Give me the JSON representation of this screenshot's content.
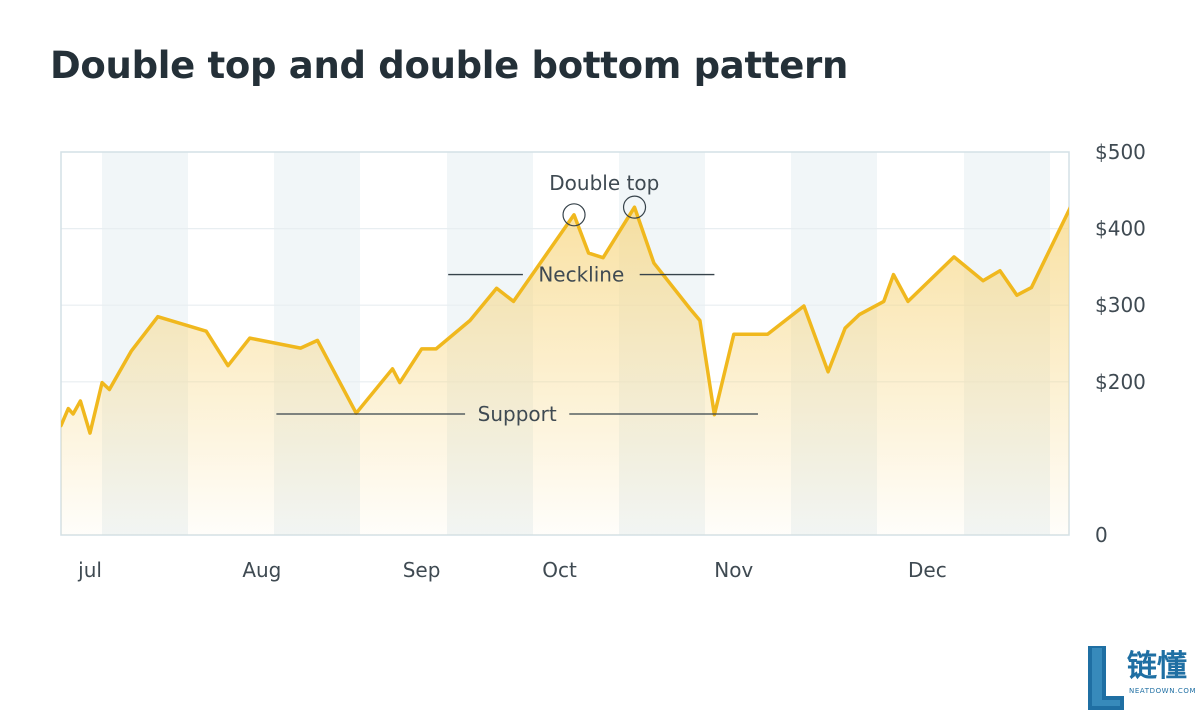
{
  "title": "Double top and double bottom pattern",
  "colors": {
    "line": "#f0b81e",
    "fill_top": "#f7d783",
    "band": "#f1f6f8",
    "grid": "#e8eef1",
    "frame": "#d4e0e6",
    "annotation_line": "#37434b",
    "text": "#3f4a52"
  },
  "chart_data": {
    "type": "area",
    "x_axis": {
      "tick_labels": [
        "jul",
        "Aug",
        "Sep",
        "Oct",
        "Nov",
        "Dec"
      ]
    },
    "y_axis": {
      "position": "right",
      "range": [
        0,
        500
      ],
      "ticks": [
        0,
        200,
        300,
        400,
        500
      ],
      "tick_labels": [
        "0",
        "$200",
        "$300",
        "$400",
        "$500"
      ]
    },
    "grid": true,
    "alternating_month_bands": true,
    "series": [
      {
        "values": [
          143,
          165,
          158,
          175,
          133,
          199,
          190,
          240,
          285,
          266,
          221,
          257,
          244,
          254,
          159,
          217,
          199,
          243,
          243,
          280,
          322,
          305,
          418,
          368,
          362,
          428,
          355,
          295,
          280,
          157,
          262,
          262,
          262,
          299,
          213,
          270,
          288,
          305,
          340,
          305,
          363,
          332,
          345,
          313,
          323,
          362
        ],
        "points": [
          [
            0.0,
            143
          ],
          [
            0.06,
            165
          ],
          [
            0.1,
            158
          ],
          [
            0.16,
            175
          ],
          [
            0.24,
            133
          ],
          [
            0.34,
            199
          ],
          [
            0.4,
            190
          ],
          [
            0.58,
            240
          ],
          [
            0.8,
            285
          ],
          [
            1.2,
            266
          ],
          [
            1.38,
            221
          ],
          [
            1.56,
            257
          ],
          [
            1.98,
            244
          ],
          [
            2.12,
            254
          ],
          [
            2.44,
            159
          ],
          [
            2.74,
            217
          ],
          [
            2.8,
            199
          ],
          [
            2.98,
            243
          ],
          [
            3.1,
            243
          ],
          [
            3.38,
            280
          ],
          [
            3.6,
            322
          ],
          [
            3.74,
            305
          ],
          [
            4.24,
            418
          ],
          [
            4.36,
            368
          ],
          [
            4.48,
            362
          ],
          [
            4.74,
            428
          ],
          [
            4.9,
            355
          ],
          [
            5.2,
            295
          ],
          [
            5.28,
            280
          ],
          [
            5.4,
            157
          ],
          [
            5.56,
            262
          ],
          [
            5.84,
            262
          ],
          [
            5.84,
            262
          ],
          [
            6.14,
            299
          ],
          [
            6.34,
            213
          ],
          [
            6.48,
            270
          ],
          [
            6.6,
            288
          ],
          [
            6.8,
            305
          ],
          [
            6.88,
            340
          ],
          [
            7.0,
            305
          ],
          [
            7.38,
            363
          ],
          [
            7.62,
            332
          ],
          [
            7.76,
            345
          ],
          [
            7.9,
            313
          ],
          [
            8.02,
            323
          ],
          [
            8.14,
            362
          ]
        ],
        "x_ticks_at": [
          0.24,
          1.66,
          2.98,
          4.12,
          5.56,
          7.16
        ]
      }
    ],
    "annotations": [
      {
        "label": "Double top",
        "points": [
          [
            4.24,
            418
          ],
          [
            4.74,
            428
          ]
        ]
      },
      {
        "label": "Neckline",
        "value": 340,
        "x_range": [
          3.2,
          5.4
        ]
      },
      {
        "label": "Support",
        "value": 158,
        "x_range": [
          1.78,
          5.76
        ]
      }
    ]
  },
  "watermark": {
    "text": "链懂",
    "subtext": "NEATDOWN.COM"
  }
}
